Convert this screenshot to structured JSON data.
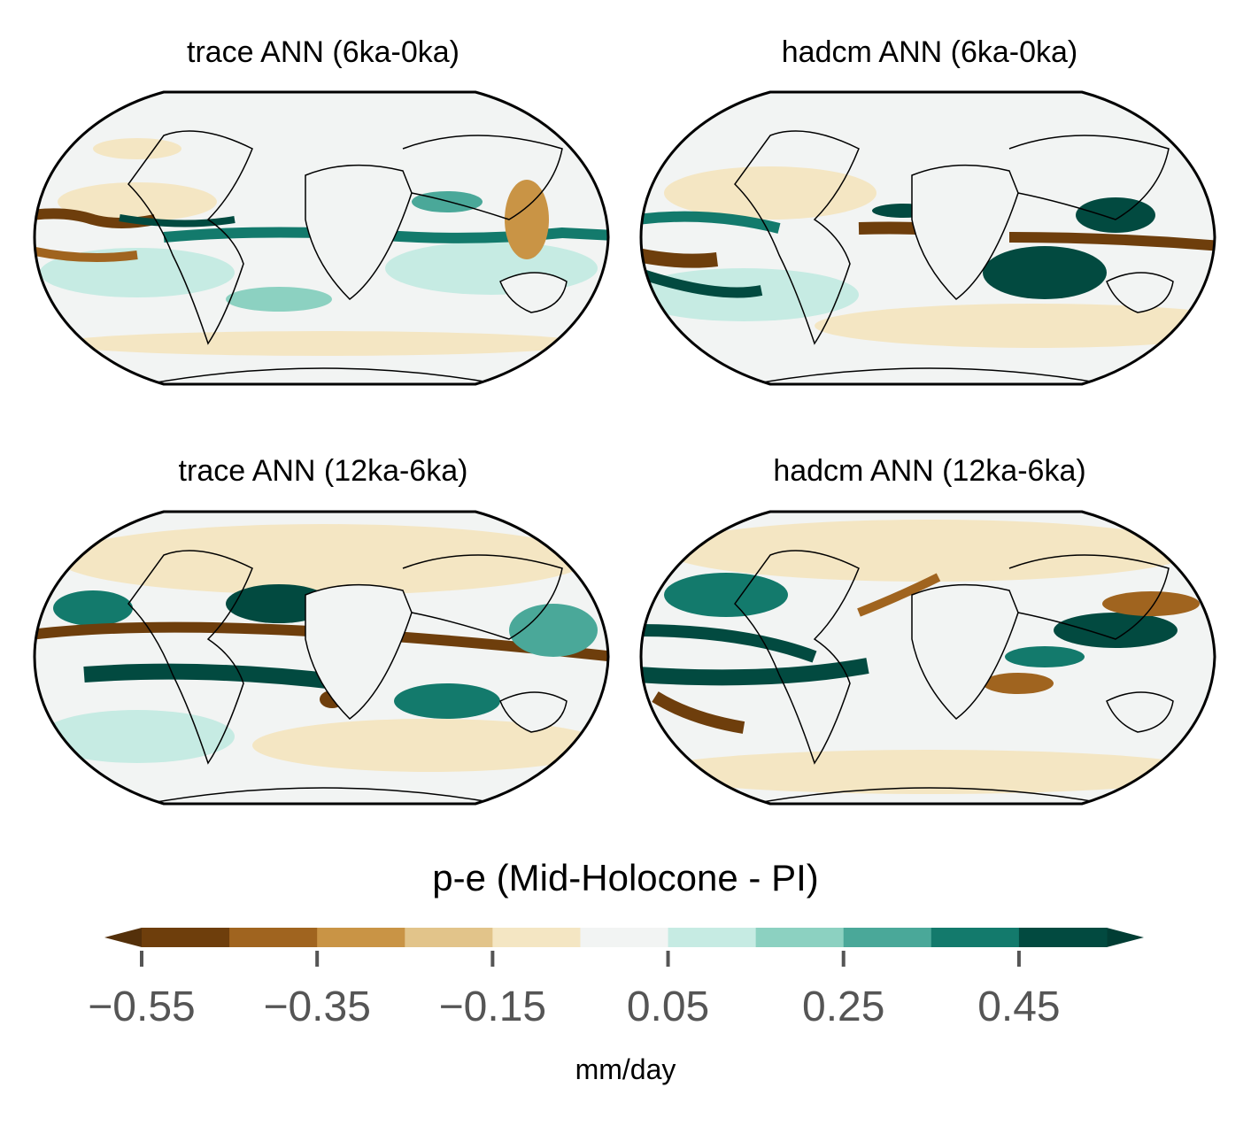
{
  "panels": [
    {
      "title": "trace ANN (6ka-0ka)"
    },
    {
      "title": "hadcm ANN (6ka-0ka)"
    },
    {
      "title": "trace ANN (12ka-6ka)"
    },
    {
      "title": "hadcm ANN (12ka-6ka)"
    }
  ],
  "colorbar": {
    "title": "p-e (Mid-Holocone - PI)",
    "units": "mm/day",
    "ticks": [
      "−0.55",
      "−0.35",
      "−0.15",
      "0.05",
      "0.25",
      "0.45"
    ],
    "tick_values": [
      -0.55,
      -0.35,
      -0.15,
      0.05,
      0.25,
      0.45
    ],
    "levels": [
      -0.55,
      -0.45,
      -0.35,
      -0.25,
      -0.15,
      -0.05,
      0.05,
      0.15,
      0.25,
      0.35,
      0.45,
      0.55
    ],
    "colors": [
      "#6e3e0c",
      "#a0641f",
      "#c99445",
      "#e2c48a",
      "#f4e6c3",
      "#f2f4f3",
      "#c6ebe3",
      "#8cd1c1",
      "#4aa899",
      "#137a6c",
      "#024a40"
    ],
    "extend_low_color": "#54300a",
    "extend_high_color": "#013d34"
  }
}
